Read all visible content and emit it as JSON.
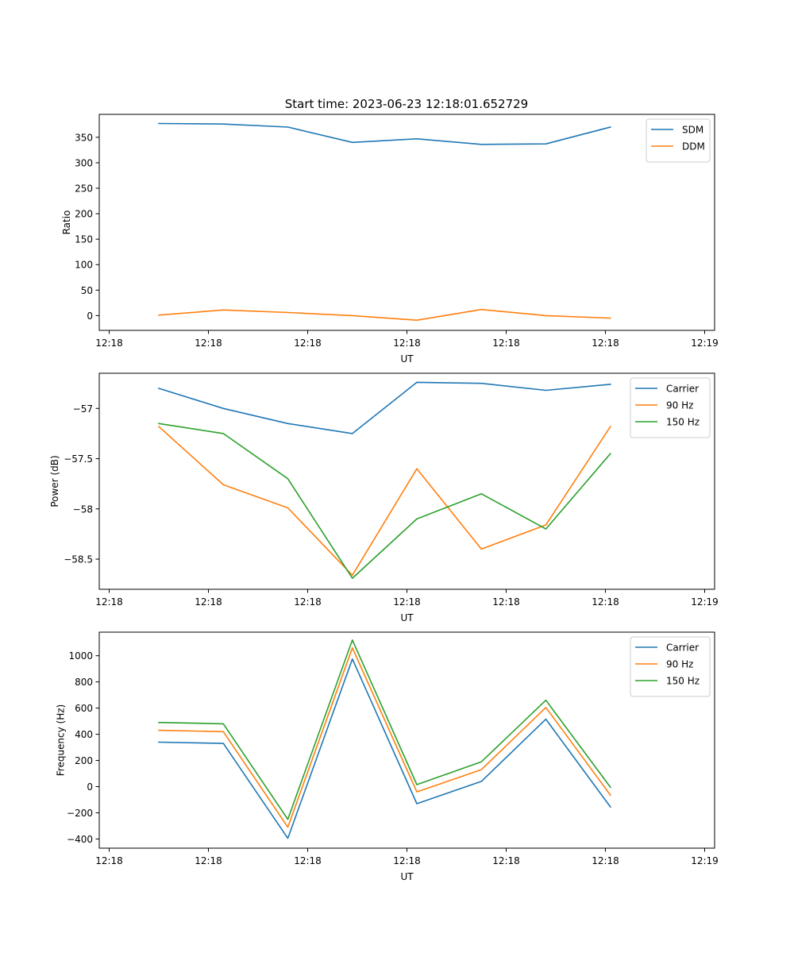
{
  "figure": {
    "title": "Start time: 2023-06-23 12:18:01.652729"
  },
  "chart_data": [
    {
      "type": "line",
      "xlabel": "UT",
      "ylabel": "Ratio",
      "x_tick_labels": [
        "12:18",
        "12:18",
        "12:18",
        "12:18",
        "12:18",
        "12:18",
        "12:19"
      ],
      "x_range": [
        -0.1,
        6.1
      ],
      "x": [
        0.5,
        1.15,
        1.8,
        2.45,
        3.1,
        3.75,
        4.4,
        5.05
      ],
      "ylim": [
        -29,
        395
      ],
      "y_ticks": [
        0,
        50,
        100,
        150,
        200,
        250,
        300,
        350
      ],
      "legend_position": "top-right",
      "grid": false,
      "series": [
        {
          "name": "SDM",
          "color": "#1f77b4",
          "values": [
            377,
            376,
            370,
            340,
            347,
            336,
            337,
            370
          ]
        },
        {
          "name": "DDM",
          "color": "#ff7f0e",
          "values": [
            1,
            11,
            6,
            0,
            -9,
            12,
            0,
            -5
          ]
        }
      ]
    },
    {
      "type": "line",
      "xlabel": "UT",
      "ylabel": "Power (dB)",
      "x_tick_labels": [
        "12:18",
        "12:18",
        "12:18",
        "12:18",
        "12:18",
        "12:18",
        "12:19"
      ],
      "x_range": [
        -0.1,
        6.1
      ],
      "x": [
        0.5,
        1.15,
        1.8,
        2.45,
        3.1,
        3.75,
        4.4,
        5.05
      ],
      "ylim": [
        -58.8,
        -56.65
      ],
      "y_ticks": [
        -57.0,
        -57.5,
        -58.0,
        -58.5
      ],
      "legend_position": "top-right",
      "grid": false,
      "series": [
        {
          "name": "Carrier",
          "color": "#1f77b4",
          "values": [
            -56.8,
            -57.0,
            -57.15,
            -57.25,
            -56.74,
            -56.75,
            -56.82,
            -56.76
          ]
        },
        {
          "name": "90 Hz",
          "color": "#ff7f0e",
          "values": [
            -57.18,
            -57.76,
            -57.99,
            -58.66,
            -57.6,
            -58.4,
            -58.16,
            -57.18
          ]
        },
        {
          "name": "150 Hz",
          "color": "#2ca02c",
          "values": [
            -57.15,
            -57.25,
            -57.7,
            -58.69,
            -58.1,
            -57.85,
            -58.2,
            -57.45
          ]
        }
      ]
    },
    {
      "type": "line",
      "xlabel": "UT",
      "ylabel": "Frequency (Hz)",
      "x_tick_labels": [
        "12:18",
        "12:18",
        "12:18",
        "12:18",
        "12:18",
        "12:18",
        "12:19"
      ],
      "x_range": [
        -0.1,
        6.1
      ],
      "x": [
        0.5,
        1.15,
        1.8,
        2.45,
        3.1,
        3.75,
        4.4,
        5.05
      ],
      "ylim": [
        -470,
        1180
      ],
      "y_ticks": [
        -400,
        -200,
        0,
        200,
        400,
        600,
        800,
        1000
      ],
      "legend_position": "top-right",
      "grid": false,
      "series": [
        {
          "name": "Carrier",
          "color": "#1f77b4",
          "values": [
            340,
            330,
            -395,
            975,
            -130,
            40,
            515,
            -155
          ]
        },
        {
          "name": "90 Hz",
          "color": "#ff7f0e",
          "values": [
            430,
            420,
            -310,
            1060,
            -40,
            130,
            605,
            -65
          ]
        },
        {
          "name": "150 Hz",
          "color": "#2ca02c",
          "values": [
            490,
            480,
            -250,
            1120,
            15,
            190,
            660,
            -5
          ]
        }
      ]
    }
  ]
}
